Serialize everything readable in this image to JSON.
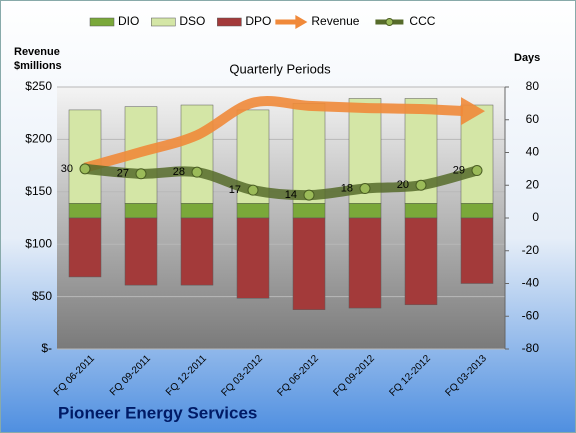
{
  "chart_data": {
    "type": "combo",
    "title": "Pioneer Energy Services",
    "subtitle": "Quarterly Periods",
    "y_label": "Revenue $millions",
    "y2_label": "Days",
    "categories": [
      "FQ 06-2011",
      "FQ 09-2011",
      "FQ 12-2011",
      "FQ 03-2012",
      "FQ 06-2012",
      "FQ 09-2012",
      "FQ 12-2012",
      "FQ 03-2013"
    ],
    "series": [
      {
        "name": "DIO",
        "type": "bar",
        "axis": "y2",
        "color": "#7aa83a",
        "values": [
          9,
          9,
          9,
          9,
          9,
          9,
          9,
          9
        ]
      },
      {
        "name": "DSO",
        "type": "bar",
        "axis": "y2",
        "color": "#d4e6a6",
        "values": [
          57,
          59,
          60,
          57,
          61,
          64,
          64,
          60
        ]
      },
      {
        "name": "DPO",
        "type": "bar",
        "axis": "y2",
        "color": "#a33a3a",
        "values": [
          -36,
          -41,
          -41,
          -49,
          -56,
          -55,
          -53,
          -40
        ]
      },
      {
        "name": "Revenue",
        "type": "arrow",
        "axis": "y",
        "color": "#f0893a",
        "values": [
          173,
          188,
          204,
          235,
          232,
          230,
          229,
          227
        ]
      },
      {
        "name": "CCC",
        "type": "line",
        "axis": "y2",
        "color": "#566b2a",
        "values": [
          30,
          27,
          28,
          17,
          14,
          18,
          20,
          29
        ]
      }
    ],
    "ylim": [
      0,
      250
    ],
    "yticks": [
      {
        "value": 0,
        "label": "$-"
      },
      {
        "value": 50,
        "label": "$50"
      },
      {
        "value": 100,
        "label": "$100"
      },
      {
        "value": 150,
        "label": "$150"
      },
      {
        "value": 200,
        "label": "$200"
      },
      {
        "value": 250,
        "label": "$250"
      }
    ],
    "y2lim": [
      -80,
      80
    ],
    "y2ticks": [
      -80,
      -60,
      -40,
      -20,
      0,
      20,
      40,
      60,
      80
    ],
    "grid": true
  }
}
